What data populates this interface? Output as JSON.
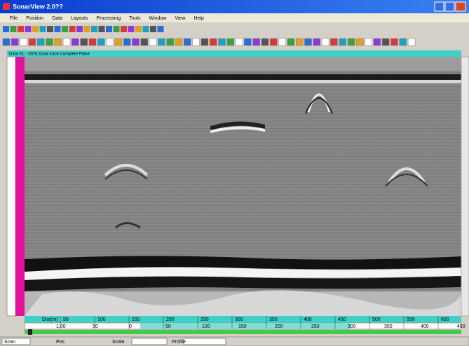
{
  "window": {
    "title": "SonarView 2.0??"
  },
  "menu": [
    "File",
    "Position",
    "Data",
    "Layouts",
    "Processing",
    "Tools",
    "Window",
    "View",
    "Help"
  ],
  "document": {
    "caption": "Data 01 - 10/01 Data trace Complete Pulse"
  },
  "scale": {
    "top_label": "Dist(m)",
    "top_ticks": [
      "50",
      "100",
      "150",
      "200",
      "250",
      "300",
      "350",
      "400",
      "450",
      "500",
      "550",
      "600"
    ],
    "bottom_ticks": [
      "1.00",
      "50",
      "0",
      "50",
      "100",
      "150",
      "200",
      "250",
      "300",
      "350",
      "400",
      "450"
    ]
  },
  "status": {
    "left": "Scan",
    "pos": "Pos",
    "scale": "Scale",
    "mode": "Profile"
  }
}
